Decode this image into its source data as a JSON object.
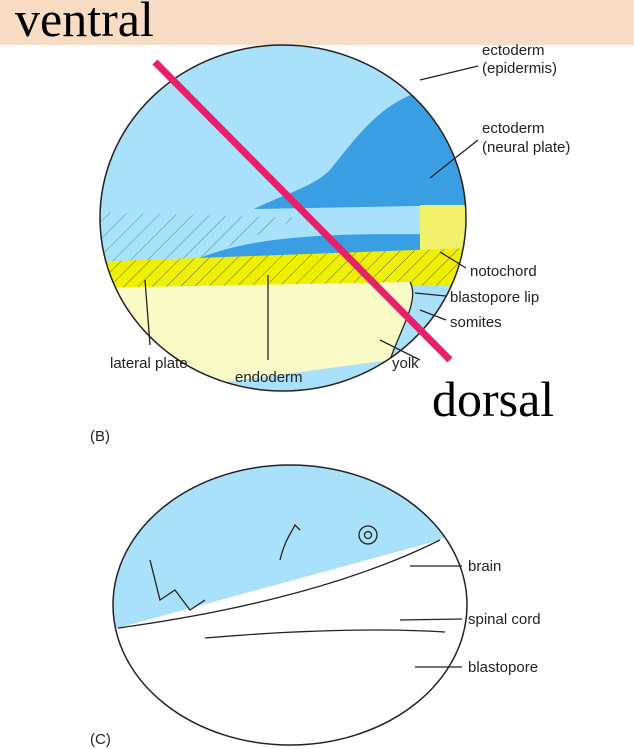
{
  "orientation": {
    "top": "ventral",
    "bottom": "dorsal"
  },
  "panel_b": {
    "tag": "(B)",
    "labels": {
      "epidermis": [
        "ectoderm",
        "(epidermis)"
      ],
      "neural_plate": [
        "ectoderm",
        "(neural plate)"
      ],
      "notochord": "notochord",
      "blastopore_lip": "blastopore lip",
      "somites": "somites",
      "yolk": "yolk",
      "lateral_plate": "lateral plate",
      "endoderm": "endoderm"
    }
  },
  "panel_c": {
    "tag": "(C)",
    "labels": {
      "brain": "brain",
      "spinal_cord": "spinal cord",
      "blastopore": "blastopore"
    }
  }
}
